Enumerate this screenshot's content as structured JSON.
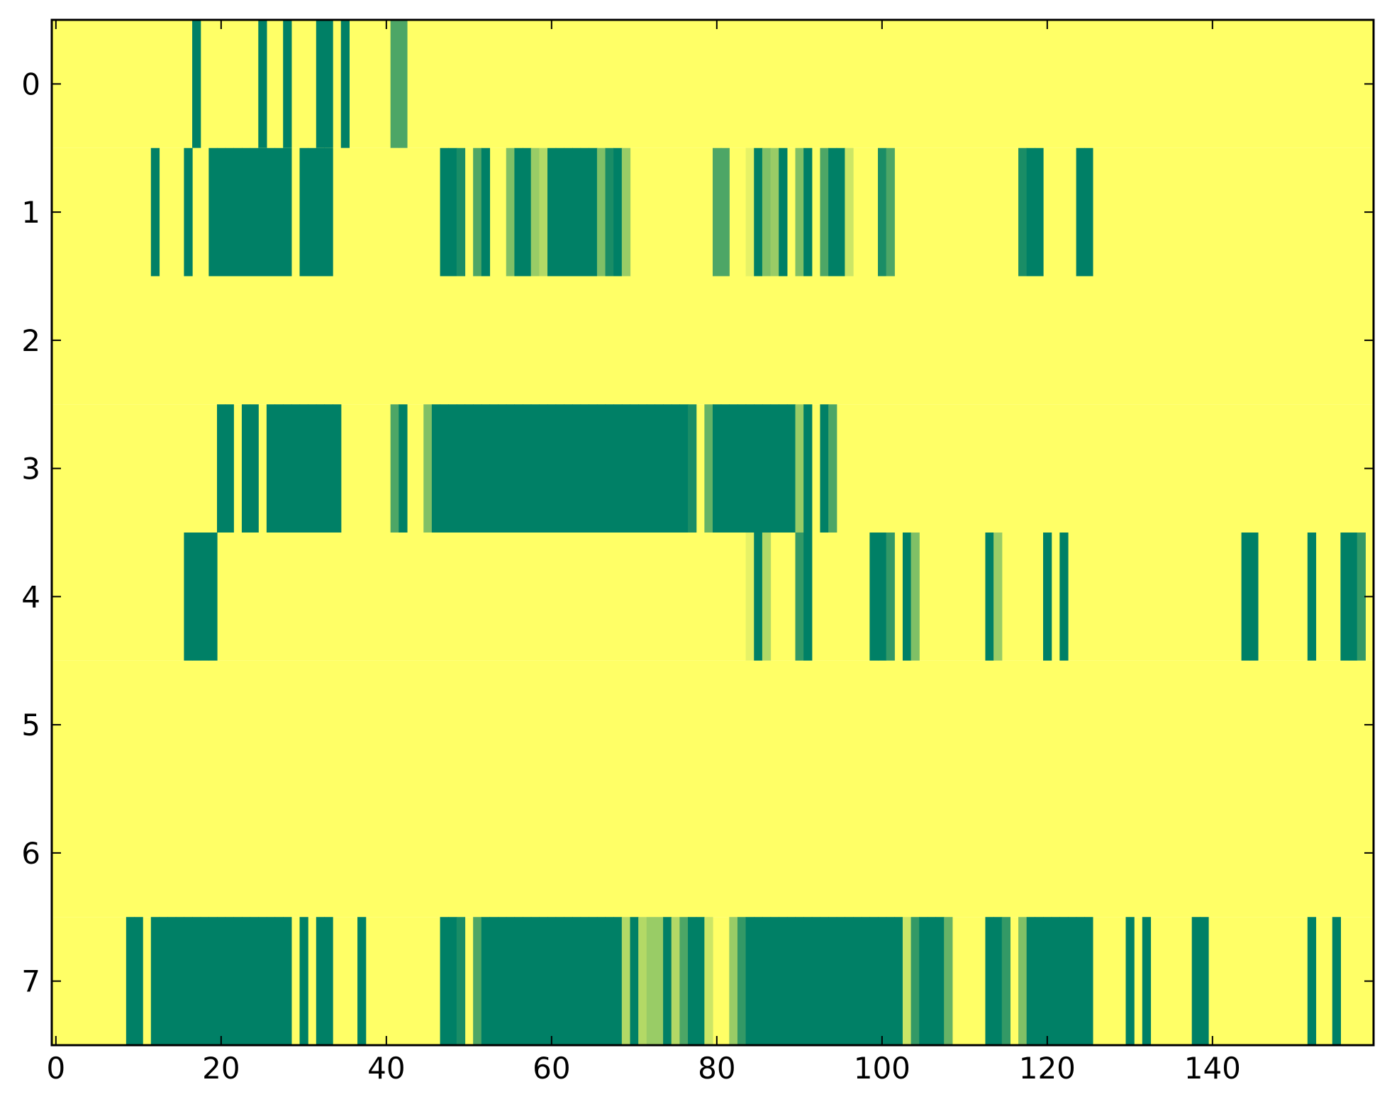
{
  "chart_data": {
    "type": "heatmap",
    "title": "",
    "xlabel": "",
    "ylabel": "",
    "xlim": [
      -0.5,
      159.5
    ],
    "ylim": [
      7.5,
      -0.5
    ],
    "x_ticks": [
      0,
      20,
      40,
      60,
      80,
      100,
      120,
      140
    ],
    "y_ticks": [
      0,
      1,
      2,
      3,
      4,
      5,
      6,
      7
    ],
    "x_tick_labels": [
      "0",
      "20",
      "40",
      "60",
      "80",
      "100",
      "120",
      "140"
    ],
    "y_tick_labels": [
      "0",
      "1",
      "2",
      "3",
      "4",
      "5",
      "6",
      "7"
    ],
    "colormap": "summer_r",
    "value_range": [
      0,
      1
    ],
    "default_value": 0,
    "colors": {
      "low": "#ffff66",
      "high": "#008066",
      "axes": "#000000",
      "background": "#ffffff"
    },
    "grid": false,
    "rows": [
      {
        "row": 0,
        "cells": [
          [
            17,
            1
          ],
          [
            25,
            1
          ],
          [
            28,
            1
          ],
          [
            32,
            1
          ],
          [
            33,
            1
          ],
          [
            35,
            1
          ],
          [
            41,
            0.7
          ],
          [
            42,
            0.7
          ]
        ]
      },
      {
        "row": 1,
        "cells": [
          [
            12,
            1
          ],
          [
            16,
            1
          ],
          [
            19,
            1
          ],
          [
            20,
            1
          ],
          [
            21,
            1
          ],
          [
            22,
            1
          ],
          [
            23,
            1
          ],
          [
            24,
            1
          ],
          [
            25,
            1
          ],
          [
            26,
            1
          ],
          [
            27,
            1
          ],
          [
            28,
            1
          ],
          [
            30,
            1
          ],
          [
            31,
            1
          ],
          [
            32,
            1
          ],
          [
            33,
            1
          ],
          [
            47,
            1
          ],
          [
            48,
            1
          ],
          [
            49,
            0.9
          ],
          [
            51,
            0.7
          ],
          [
            52,
            1
          ],
          [
            55,
            0.5
          ],
          [
            56,
            1
          ],
          [
            57,
            1
          ],
          [
            58,
            0.4
          ],
          [
            59,
            0.3
          ],
          [
            60,
            1
          ],
          [
            61,
            1
          ],
          [
            62,
            1
          ],
          [
            63,
            1
          ],
          [
            64,
            1
          ],
          [
            65,
            1
          ],
          [
            66,
            0.5
          ],
          [
            67,
            0.9
          ],
          [
            68,
            1
          ],
          [
            69,
            0.4
          ],
          [
            80,
            0.7
          ],
          [
            81,
            0.7
          ],
          [
            84,
            0.1
          ],
          [
            85,
            1
          ],
          [
            86,
            0.5
          ],
          [
            87,
            0.4
          ],
          [
            88,
            1
          ],
          [
            90,
            0.5
          ],
          [
            91,
            1
          ],
          [
            93,
            0.7
          ],
          [
            94,
            1
          ],
          [
            95,
            1
          ],
          [
            96,
            0.2
          ],
          [
            100,
            0.9
          ],
          [
            101,
            0.7
          ],
          [
            117,
            0.9
          ],
          [
            118,
            1
          ],
          [
            119,
            1
          ],
          [
            124,
            1
          ],
          [
            125,
            1
          ]
        ]
      },
      {
        "row": 2,
        "cells": []
      },
      {
        "row": 3,
        "cells": [
          [
            20,
            1
          ],
          [
            21,
            1
          ],
          [
            23,
            1
          ],
          [
            24,
            1
          ],
          [
            26,
            1
          ],
          [
            27,
            1
          ],
          [
            28,
            1
          ],
          [
            29,
            1
          ],
          [
            30,
            1
          ],
          [
            31,
            1
          ],
          [
            32,
            1
          ],
          [
            33,
            1
          ],
          [
            34,
            1
          ],
          [
            41,
            0.7
          ],
          [
            42,
            1
          ],
          [
            45,
            0.5
          ],
          [
            46,
            1
          ],
          [
            47,
            1
          ],
          [
            48,
            1
          ],
          [
            49,
            1
          ],
          [
            50,
            1
          ],
          [
            51,
            1
          ],
          [
            52,
            1
          ],
          [
            53,
            1
          ],
          [
            54,
            1
          ],
          [
            55,
            1
          ],
          [
            56,
            1
          ],
          [
            57,
            1
          ],
          [
            58,
            1
          ],
          [
            59,
            1
          ],
          [
            60,
            1
          ],
          [
            61,
            1
          ],
          [
            62,
            1
          ],
          [
            63,
            1
          ],
          [
            64,
            1
          ],
          [
            65,
            1
          ],
          [
            66,
            1
          ],
          [
            67,
            1
          ],
          [
            68,
            1
          ],
          [
            69,
            1
          ],
          [
            70,
            1
          ],
          [
            71,
            1
          ],
          [
            72,
            1
          ],
          [
            73,
            1
          ],
          [
            74,
            1
          ],
          [
            75,
            1
          ],
          [
            76,
            1
          ],
          [
            77,
            0.9
          ],
          [
            79,
            0.6
          ],
          [
            80,
            1
          ],
          [
            81,
            1
          ],
          [
            82,
            1
          ],
          [
            83,
            1
          ],
          [
            84,
            1
          ],
          [
            85,
            1
          ],
          [
            86,
            1
          ],
          [
            87,
            1
          ],
          [
            88,
            1
          ],
          [
            89,
            1
          ],
          [
            90,
            0.4
          ],
          [
            91,
            1
          ],
          [
            93,
            1
          ],
          [
            94,
            0.7
          ]
        ]
      },
      {
        "row": 4,
        "cells": [
          [
            16,
            1
          ],
          [
            17,
            1
          ],
          [
            18,
            1
          ],
          [
            19,
            1
          ],
          [
            84,
            0.1
          ],
          [
            85,
            1
          ],
          [
            86,
            0.3
          ],
          [
            90,
            0.8
          ],
          [
            91,
            1
          ],
          [
            99,
            1
          ],
          [
            100,
            1
          ],
          [
            101,
            0.8
          ],
          [
            103,
            1
          ],
          [
            104,
            0.5
          ],
          [
            113,
            1
          ],
          [
            114,
            0.4
          ],
          [
            120,
            1
          ],
          [
            122,
            1
          ],
          [
            144,
            1
          ],
          [
            145,
            1
          ],
          [
            152,
            1
          ],
          [
            156,
            1
          ],
          [
            157,
            1
          ],
          [
            158,
            0.8
          ]
        ]
      },
      {
        "row": 5,
        "cells": []
      },
      {
        "row": 6,
        "cells": []
      },
      {
        "row": 7,
        "cells": [
          [
            9,
            1
          ],
          [
            10,
            1
          ],
          [
            12,
            1
          ],
          [
            13,
            1
          ],
          [
            14,
            1
          ],
          [
            15,
            1
          ],
          [
            16,
            1
          ],
          [
            17,
            1
          ],
          [
            18,
            1
          ],
          [
            19,
            1
          ],
          [
            20,
            1
          ],
          [
            21,
            1
          ],
          [
            22,
            1
          ],
          [
            23,
            1
          ],
          [
            24,
            1
          ],
          [
            25,
            1
          ],
          [
            26,
            1
          ],
          [
            27,
            1
          ],
          [
            28,
            1
          ],
          [
            30,
            1
          ],
          [
            32,
            1
          ],
          [
            33,
            1
          ],
          [
            37,
            1
          ],
          [
            47,
            1
          ],
          [
            48,
            1
          ],
          [
            49,
            0.9
          ],
          [
            51,
            0.7
          ],
          [
            52,
            1
          ],
          [
            53,
            1
          ],
          [
            54,
            1
          ],
          [
            55,
            1
          ],
          [
            56,
            1
          ],
          [
            57,
            1
          ],
          [
            58,
            1
          ],
          [
            59,
            1
          ],
          [
            60,
            1
          ],
          [
            61,
            1
          ],
          [
            62,
            1
          ],
          [
            63,
            1
          ],
          [
            64,
            1
          ],
          [
            65,
            1
          ],
          [
            66,
            1
          ],
          [
            67,
            1
          ],
          [
            68,
            1
          ],
          [
            69,
            0.3
          ],
          [
            70,
            1
          ],
          [
            71,
            0.3
          ],
          [
            72,
            0.4
          ],
          [
            73,
            0.4
          ],
          [
            74,
            1
          ],
          [
            75,
            0.3
          ],
          [
            76,
            0.7
          ],
          [
            77,
            1
          ],
          [
            78,
            1
          ],
          [
            79,
            0.2
          ],
          [
            82,
            0.4
          ],
          [
            83,
            0.8
          ],
          [
            84,
            1
          ],
          [
            85,
            1
          ],
          [
            86,
            1
          ],
          [
            87,
            1
          ],
          [
            88,
            1
          ],
          [
            89,
            1
          ],
          [
            90,
            1
          ],
          [
            91,
            1
          ],
          [
            92,
            1
          ],
          [
            93,
            1
          ],
          [
            94,
            1
          ],
          [
            95,
            1
          ],
          [
            96,
            1
          ],
          [
            97,
            1
          ],
          [
            98,
            1
          ],
          [
            99,
            1
          ],
          [
            100,
            1
          ],
          [
            101,
            1
          ],
          [
            102,
            1
          ],
          [
            103,
            0.2
          ],
          [
            104,
            0.8
          ],
          [
            105,
            1
          ],
          [
            106,
            1
          ],
          [
            107,
            1
          ],
          [
            108,
            0.6
          ],
          [
            113,
            1
          ],
          [
            114,
            1
          ],
          [
            115,
            0.8
          ],
          [
            117,
            0.5
          ],
          [
            118,
            1
          ],
          [
            119,
            1
          ],
          [
            120,
            1
          ],
          [
            121,
            1
          ],
          [
            122,
            1
          ],
          [
            123,
            1
          ],
          [
            124,
            1
          ],
          [
            125,
            1
          ],
          [
            130,
            1
          ],
          [
            132,
            1
          ],
          [
            138,
            1
          ],
          [
            139,
            1
          ],
          [
            152,
            1
          ],
          [
            155,
            1
          ]
        ]
      }
    ]
  }
}
